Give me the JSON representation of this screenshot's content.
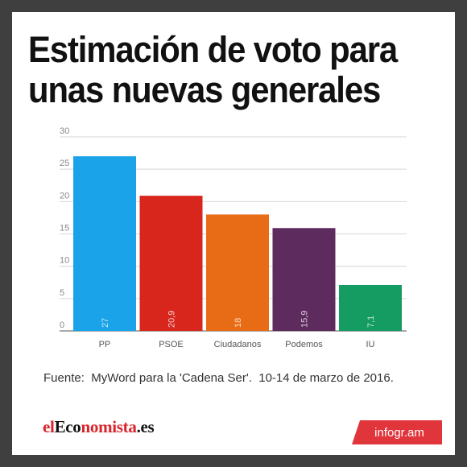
{
  "title": "Estimación de voto para unas nuevas generales",
  "source": "Fuente:  MyWord para la 'Cadena Ser'.  10-14 de marzo de 2016.",
  "logo": {
    "el": "el",
    "eco": "Eco",
    "nomista": "nomista",
    "es": ".es"
  },
  "badge": "infogr.am",
  "chart_data": {
    "type": "bar",
    "categories": [
      "PP",
      "PSOE",
      "Ciudadanos",
      "Podemos",
      "IU"
    ],
    "values": [
      27,
      20.9,
      18,
      15.9,
      7.1
    ],
    "value_labels": [
      "27",
      "20,9",
      "18",
      "15,9",
      "7,1"
    ],
    "colors": [
      "#1aa3e8",
      "#d8261d",
      "#e86b16",
      "#5e2b5e",
      "#149c62"
    ],
    "ylim": [
      0,
      30
    ],
    "yticks": [
      0,
      5,
      10,
      15,
      20,
      25,
      30
    ],
    "grid": true
  }
}
